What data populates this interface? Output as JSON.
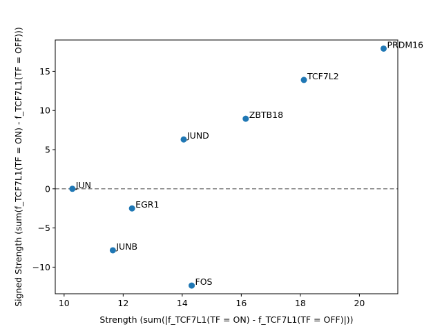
{
  "chart_data": {
    "type": "scatter",
    "title": "",
    "xlabel": "Strength (sum(|f_TCF7L1(TF = ON) - f_TCF7L1(TF = OFF)|))",
    "ylabel": "Signed Strength (sum(f_TCF7L1(TF = ON) - f_TCF7L1(TF = OFF)))",
    "xlim": [
      9.7,
      21.3
    ],
    "ylim": [
      -13.4,
      19.0
    ],
    "xticks": [
      10,
      12,
      14,
      16,
      18,
      20
    ],
    "yticks": [
      -10,
      -5,
      0,
      5,
      10,
      15
    ],
    "reference_line": {
      "y": 0,
      "style": "dashed",
      "color": "#808080"
    },
    "marker_color": "#1f77b4",
    "points": [
      {
        "label": "PRDM16",
        "x": 20.82,
        "y": 17.9
      },
      {
        "label": "TCF7L2",
        "x": 18.12,
        "y": 13.9
      },
      {
        "label": "ZBTB18",
        "x": 16.15,
        "y": 8.95
      },
      {
        "label": "JUND",
        "x": 14.05,
        "y": 6.3
      },
      {
        "label": "JUN",
        "x": 10.28,
        "y": 0.0
      },
      {
        "label": "EGR1",
        "x": 12.3,
        "y": -2.5
      },
      {
        "label": "JUNB",
        "x": 11.65,
        "y": -7.85
      },
      {
        "label": "FOS",
        "x": 14.32,
        "y": -12.35
      }
    ]
  }
}
